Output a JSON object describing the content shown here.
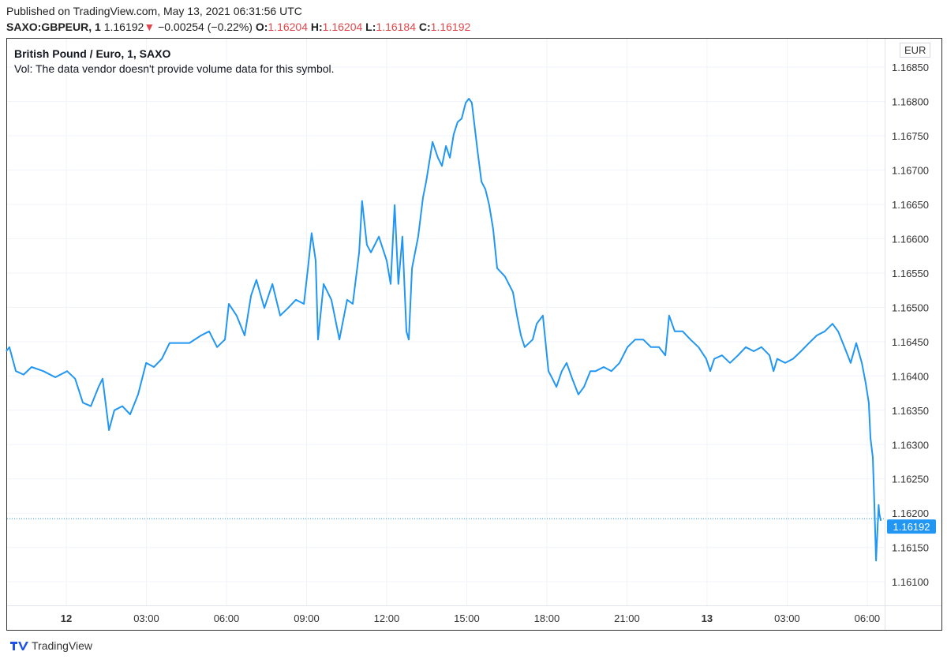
{
  "header": {
    "published": "Published on TradingView.com, May 13, 2021 06:31:56 UTC",
    "symbol": "SAXO:GBPEUR, 1",
    "last": "1.16192",
    "change": "−0.00254 (−0.22%)",
    "o_label": "O:",
    "o": "1.16204",
    "h_label": "H:",
    "h": "1.16204",
    "l_label": "L:",
    "l": "1.16184",
    "c_label": "C:",
    "c": "1.16192"
  },
  "legend": {
    "title": "British Pound / Euro, 1, SAXO",
    "vol": "Vol: The data vendor doesn't provide volume data for this symbol."
  },
  "currency": "EUR",
  "footer": {
    "brand": "TradingView"
  },
  "colors": {
    "line": "#2196f3",
    "down": "#e0474c",
    "grid": "#f0f3fa"
  },
  "chart_data": {
    "type": "line",
    "title": "British Pound / Euro, 1, SAXO",
    "x_unit": "hours since May 12 00:00 UTC",
    "xlim": [
      -2.25,
      32.7
    ],
    "ylim": [
      1.1606,
      1.169
    ],
    "y_ticks": [
      "1.16850",
      "1.16800",
      "1.16750",
      "1.16700",
      "1.16650",
      "1.16600",
      "1.16550",
      "1.16500",
      "1.16450",
      "1.16400",
      "1.16350",
      "1.16300",
      "1.16250",
      "1.16200",
      "1.16150",
      "1.16100"
    ],
    "x_ticks": [
      {
        "h": 0,
        "label": "12"
      },
      {
        "h": 3,
        "label": "03:00"
      },
      {
        "h": 6,
        "label": "06:00"
      },
      {
        "h": 9,
        "label": "09:00"
      },
      {
        "h": 12,
        "label": "12:00"
      },
      {
        "h": 15,
        "label": "15:00"
      },
      {
        "h": 18,
        "label": "18:00"
      },
      {
        "h": 21,
        "label": "21:00"
      },
      {
        "h": 24,
        "label": "13"
      },
      {
        "h": 27,
        "label": "03:00"
      },
      {
        "h": 30,
        "label": "06:00"
      }
    ],
    "last_price": 1.16192,
    "last_label": "1.16192",
    "series": [
      {
        "name": "GBPEUR",
        "points": [
          [
            -2.25,
            1.16436
          ],
          [
            -2.13,
            1.16442
          ],
          [
            -1.89,
            1.16407
          ],
          [
            -1.6,
            1.16402
          ],
          [
            -1.3,
            1.16413
          ],
          [
            -0.86,
            1.16407
          ],
          [
            -0.41,
            1.16398
          ],
          [
            0.03,
            1.16407
          ],
          [
            0.33,
            1.16396
          ],
          [
            0.62,
            1.16361
          ],
          [
            0.92,
            1.16356
          ],
          [
            1.21,
            1.16384
          ],
          [
            1.36,
            1.16396
          ],
          [
            1.6,
            1.16321
          ],
          [
            1.8,
            1.1635
          ],
          [
            2.1,
            1.16356
          ],
          [
            2.39,
            1.16344
          ],
          [
            2.69,
            1.16373
          ],
          [
            2.99,
            1.16419
          ],
          [
            3.28,
            1.16413
          ],
          [
            3.58,
            1.16425
          ],
          [
            3.87,
            1.16448
          ],
          [
            4.17,
            1.16448
          ],
          [
            4.61,
            1.16448
          ],
          [
            5.05,
            1.16459
          ],
          [
            5.35,
            1.16465
          ],
          [
            5.65,
            1.16442
          ],
          [
            5.94,
            1.16453
          ],
          [
            6.09,
            1.16505
          ],
          [
            6.38,
            1.16488
          ],
          [
            6.68,
            1.16459
          ],
          [
            6.92,
            1.16517
          ],
          [
            7.12,
            1.1654
          ],
          [
            7.42,
            1.16499
          ],
          [
            7.72,
            1.16534
          ],
          [
            8.01,
            1.16488
          ],
          [
            8.31,
            1.16499
          ],
          [
            8.6,
            1.16511
          ],
          [
            8.9,
            1.16505
          ],
          [
            9.05,
            1.16557
          ],
          [
            9.19,
            1.16608
          ],
          [
            9.34,
            1.16568
          ],
          [
            9.43,
            1.16453
          ],
          [
            9.64,
            1.16534
          ],
          [
            9.93,
            1.16511
          ],
          [
            10.23,
            1.16453
          ],
          [
            10.52,
            1.16511
          ],
          [
            10.73,
            1.16505
          ],
          [
            10.97,
            1.1658
          ],
          [
            11.08,
            1.16655
          ],
          [
            11.26,
            1.16591
          ],
          [
            11.41,
            1.1658
          ],
          [
            11.71,
            1.16603
          ],
          [
            12.0,
            1.16568
          ],
          [
            12.15,
            1.16534
          ],
          [
            12.3,
            1.16649
          ],
          [
            12.44,
            1.16534
          ],
          [
            12.59,
            1.16603
          ],
          [
            12.74,
            1.16465
          ],
          [
            12.83,
            1.16453
          ],
          [
            12.95,
            1.16557
          ],
          [
            13.18,
            1.16603
          ],
          [
            13.36,
            1.1666
          ],
          [
            13.48,
            1.16683
          ],
          [
            13.72,
            1.16741
          ],
          [
            13.92,
            1.16718
          ],
          [
            14.07,
            1.16706
          ],
          [
            14.22,
            1.16735
          ],
          [
            14.37,
            1.16718
          ],
          [
            14.51,
            1.16752
          ],
          [
            14.66,
            1.1677
          ],
          [
            14.81,
            1.16775
          ],
          [
            14.96,
            1.16798
          ],
          [
            15.08,
            1.16804
          ],
          [
            15.19,
            1.16798
          ],
          [
            15.4,
            1.16729
          ],
          [
            15.55,
            1.16683
          ],
          [
            15.7,
            1.16672
          ],
          [
            15.84,
            1.16649
          ],
          [
            15.99,
            1.16614
          ],
          [
            16.14,
            1.16557
          ],
          [
            16.43,
            1.16545
          ],
          [
            16.73,
            1.16522
          ],
          [
            16.88,
            1.16488
          ],
          [
            17.03,
            1.16459
          ],
          [
            17.17,
            1.16442
          ],
          [
            17.47,
            1.16453
          ],
          [
            17.62,
            1.16476
          ],
          [
            17.85,
            1.16488
          ],
          [
            18.06,
            1.16407
          ],
          [
            18.21,
            1.16396
          ],
          [
            18.36,
            1.16384
          ],
          [
            18.56,
            1.16407
          ],
          [
            18.74,
            1.16419
          ],
          [
            18.95,
            1.16396
          ],
          [
            19.18,
            1.16373
          ],
          [
            19.39,
            1.16384
          ],
          [
            19.63,
            1.16407
          ],
          [
            19.83,
            1.16407
          ],
          [
            20.13,
            1.16413
          ],
          [
            20.42,
            1.16407
          ],
          [
            20.72,
            1.16419
          ],
          [
            21.02,
            1.16442
          ],
          [
            21.31,
            1.16453
          ],
          [
            21.61,
            1.16453
          ],
          [
            21.9,
            1.16442
          ],
          [
            22.2,
            1.16442
          ],
          [
            22.44,
            1.1643
          ],
          [
            22.58,
            1.16488
          ],
          [
            22.79,
            1.16465
          ],
          [
            23.09,
            1.16465
          ],
          [
            23.38,
            1.16453
          ],
          [
            23.68,
            1.16442
          ],
          [
            23.97,
            1.16425
          ],
          [
            24.12,
            1.16407
          ],
          [
            24.27,
            1.16425
          ],
          [
            24.56,
            1.1643
          ],
          [
            24.86,
            1.16419
          ],
          [
            25.16,
            1.1643
          ],
          [
            25.45,
            1.16442
          ],
          [
            25.75,
            1.16436
          ],
          [
            26.04,
            1.16442
          ],
          [
            26.34,
            1.1643
          ],
          [
            26.49,
            1.16407
          ],
          [
            26.63,
            1.16425
          ],
          [
            26.93,
            1.16419
          ],
          [
            27.22,
            1.16425
          ],
          [
            27.52,
            1.16436
          ],
          [
            27.82,
            1.16448
          ],
          [
            28.11,
            1.16459
          ],
          [
            28.41,
            1.16465
          ],
          [
            28.7,
            1.16476
          ],
          [
            28.91,
            1.16465
          ],
          [
            29.15,
            1.16442
          ],
          [
            29.38,
            1.16419
          ],
          [
            29.59,
            1.16448
          ],
          [
            29.8,
            1.16419
          ],
          [
            29.94,
            1.1639
          ],
          [
            30.06,
            1.16361
          ],
          [
            30.12,
            1.1631
          ],
          [
            30.21,
            1.16281
          ],
          [
            30.27,
            1.16212
          ],
          [
            30.33,
            1.16131
          ],
          [
            30.43,
            1.16212
          ],
          [
            30.45,
            1.162
          ],
          [
            30.51,
            1.16189
          ]
        ]
      }
    ]
  }
}
